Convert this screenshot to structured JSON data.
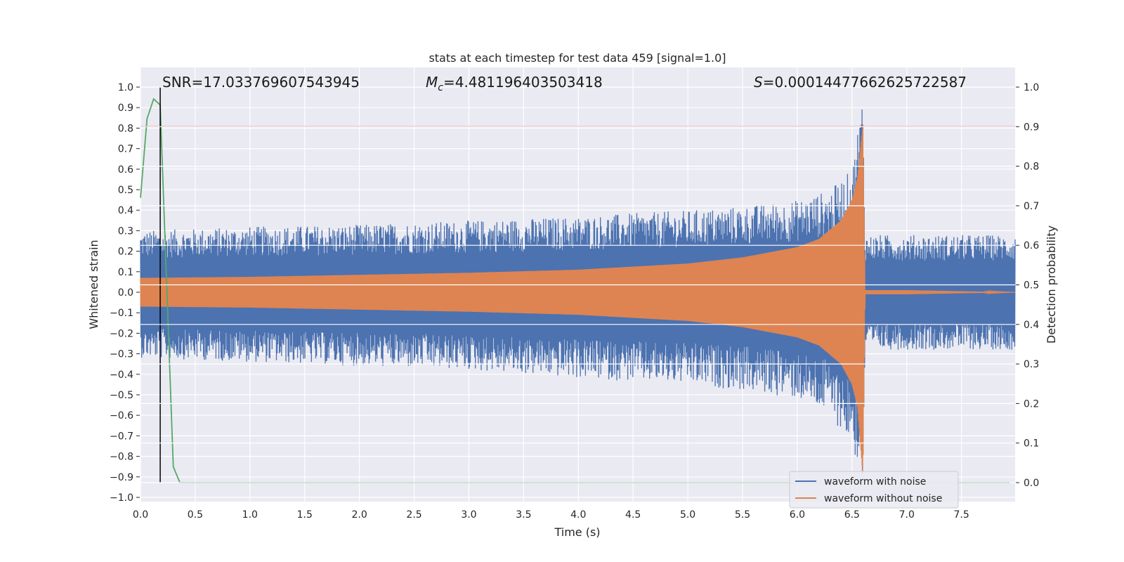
{
  "chart_data": {
    "type": "line",
    "title": "stats at each timestep for test data 459 [signal=1.0]",
    "xlabel": "Time (s)",
    "ylabel": "Whitened strain",
    "y2label": "Detection probability",
    "xlim": [
      0.0,
      7.99
    ],
    "ylim": [
      -1.02,
      1.02
    ],
    "y2lim": [
      -0.05,
      1.03
    ],
    "x_ticks": [
      "0.0",
      "0.5",
      "1.0",
      "1.5",
      "2.0",
      "2.5",
      "3.0",
      "3.5",
      "4.0",
      "4.5",
      "5.0",
      "5.5",
      "6.0",
      "6.5",
      "7.0",
      "7.5"
    ],
    "y_ticks": [
      "−1.0",
      "−0.9",
      "−0.8",
      "−0.7",
      "−0.6",
      "−0.5",
      "−0.4",
      "−0.3",
      "−0.2",
      "−0.1",
      "0.0",
      "0.1",
      "0.2",
      "0.3",
      "0.4",
      "0.5",
      "0.6",
      "0.7",
      "0.8",
      "0.9",
      "1.0"
    ],
    "y2_ticks": [
      "0.0",
      "0.1",
      "0.2",
      "0.3",
      "0.4",
      "0.5",
      "0.6",
      "0.7",
      "0.8",
      "0.9",
      "1.0"
    ],
    "grid": true,
    "legend_position": "lower-right",
    "annotations": {
      "snr": "SNR=17.033769607543945",
      "mc_symbol": "M",
      "mc_sub": "c",
      "mc_value": "=4.481196403503418",
      "s_symbol": "S",
      "s_value": "=0.00014477662625722587"
    },
    "series": [
      {
        "name": "waveform with noise",
        "color": "#4c72b0",
        "axis": "left",
        "envelope_x": [
          0.0,
          1.0,
          2.0,
          3.0,
          4.0,
          5.0,
          5.5,
          6.0,
          6.3,
          6.5,
          6.6,
          6.62,
          7.0,
          7.99
        ],
        "envelope_upper": [
          0.3,
          0.32,
          0.33,
          0.35,
          0.37,
          0.4,
          0.42,
          0.45,
          0.5,
          0.6,
          1.0,
          0.28,
          0.28,
          0.28
        ],
        "envelope_lower": [
          -0.32,
          -0.34,
          -0.36,
          -0.38,
          -0.42,
          -0.45,
          -0.48,
          -0.52,
          -0.6,
          -0.75,
          -0.95,
          -0.28,
          -0.28,
          -0.28
        ]
      },
      {
        "name": "waveform without noise",
        "color": "#dd8452",
        "axis": "left",
        "envelope_x": [
          0.0,
          1.0,
          2.0,
          3.0,
          4.0,
          5.0,
          5.5,
          6.0,
          6.2,
          6.4,
          6.5,
          6.55,
          6.6,
          6.62,
          7.0,
          7.99
        ],
        "envelope_upper": [
          0.07,
          0.075,
          0.085,
          0.095,
          0.11,
          0.14,
          0.17,
          0.22,
          0.26,
          0.35,
          0.45,
          0.56,
          0.82,
          0.01,
          0.01,
          0.0
        ],
        "envelope_lower": [
          -0.07,
          -0.075,
          -0.085,
          -0.095,
          -0.11,
          -0.14,
          -0.17,
          -0.22,
          -0.26,
          -0.35,
          -0.45,
          -0.56,
          -0.9,
          -0.01,
          -0.01,
          0.0
        ]
      },
      {
        "name": "detection probability",
        "color": "#55a868",
        "axis": "right",
        "x": [
          0.0,
          0.06,
          0.12,
          0.18,
          0.3,
          0.36,
          0.42,
          1.0,
          3.0,
          5.0,
          7.0,
          7.94
        ],
        "y": [
          0.72,
          0.92,
          0.97,
          0.955,
          0.04,
          0.0,
          0.0,
          0.0,
          0.0,
          0.0,
          0.0,
          0.0
        ]
      }
    ],
    "reference_lines": {
      "threshold_y2": 0.9,
      "threshold_color": "#c44e52",
      "marker_x": 0.18,
      "marker_color": "#000000"
    }
  }
}
